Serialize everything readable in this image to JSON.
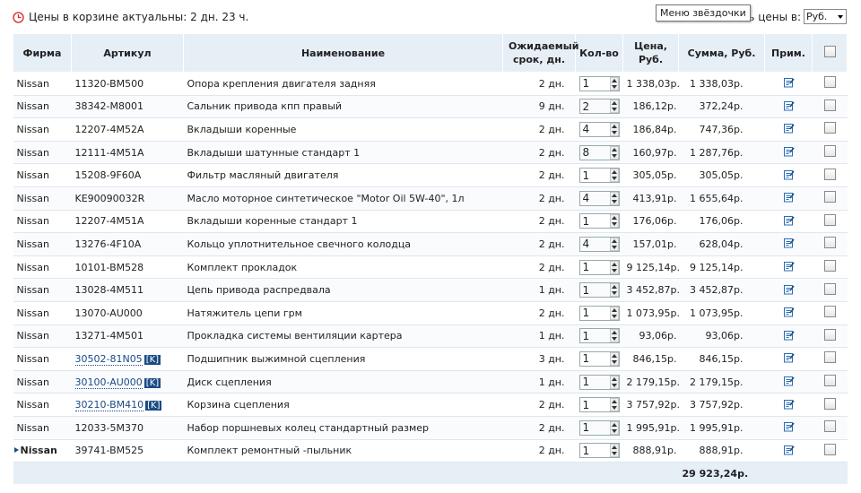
{
  "header": {
    "notice": "Цены в корзине актуальны: 2 дн. 23 ч.",
    "currency_label": "Показать цены в:",
    "currency": "Руб.",
    "tooltip": "Меню звёздочки"
  },
  "table": {
    "columns": [
      "Фирма",
      "Артикул",
      "Наименование",
      "Ожидаемый срок, дн.",
      "Кол-во",
      "Цена, Руб.",
      "Сумма, Руб.",
      "Прим."
    ],
    "rows": [
      {
        "firm": "Nissan",
        "article": "11320-BM500",
        "name": "Опора крепления двигателя задняя",
        "term": "2 дн.",
        "qty": "1",
        "price": "1 338,03р.",
        "sum": "1 338,03р."
      },
      {
        "firm": "Nissan",
        "article": "38342-M8001",
        "name": "Сальник привода кпп правый",
        "term": "9 дн.",
        "qty": "2",
        "price": "186,12р.",
        "sum": "372,24р."
      },
      {
        "firm": "Nissan",
        "article": "12207-4M52A",
        "name": "Вкладыши коренные",
        "term": "2 дн.",
        "qty": "4",
        "price": "186,84р.",
        "sum": "747,36р."
      },
      {
        "firm": "Nissan",
        "article": "12111-4M51A",
        "name": "Вкладыши шатунные стандарт 1",
        "term": "2 дн.",
        "qty": "8",
        "price": "160,97р.",
        "sum": "1 287,76р."
      },
      {
        "firm": "Nissan",
        "article": "15208-9F60A",
        "name": "Фильтр масляный двигателя",
        "term": "2 дн.",
        "qty": "1",
        "price": "305,05р.",
        "sum": "305,05р."
      },
      {
        "firm": "Nissan",
        "article": "KE90090032R",
        "name": "Масло моторное синтетическое \"Motor Oil 5W-40\", 1л",
        "term": "2 дн.",
        "qty": "4",
        "price": "413,91р.",
        "sum": "1 655,64р."
      },
      {
        "firm": "Nissan",
        "article": "12207-4M51A",
        "name": "Вкладыши коренные стандарт 1",
        "term": "2 дн.",
        "qty": "1",
        "price": "176,06р.",
        "sum": "176,06р."
      },
      {
        "firm": "Nissan",
        "article": "13276-4F10A",
        "name": "Кольцо уплотнительное свечного колодца",
        "term": "2 дн.",
        "qty": "4",
        "price": "157,01р.",
        "sum": "628,04р."
      },
      {
        "firm": "Nissan",
        "article": "10101-BM528",
        "name": "Комплект прокладок",
        "term": "2 дн.",
        "qty": "1",
        "price": "9 125,14р.",
        "sum": "9 125,14р."
      },
      {
        "firm": "Nissan",
        "article": "13028-4M511",
        "name": "Цепь привода распредвала",
        "term": "1 дн.",
        "qty": "1",
        "price": "3 452,87р.",
        "sum": "3 452,87р."
      },
      {
        "firm": "Nissan",
        "article": "13070-AU000",
        "name": "Натяжитель цепи грм",
        "term": "2 дн.",
        "qty": "1",
        "price": "1 073,95р.",
        "sum": "1 073,95р."
      },
      {
        "firm": "Nissan",
        "article": "13271-4M501",
        "name": "Прокладка системы вентиляции картера",
        "term": "1 дн.",
        "qty": "1",
        "price": "93,06р.",
        "sum": "93,06р."
      },
      {
        "firm": "Nissan",
        "article": "30502-81N05",
        "badge": "[K]",
        "name": "Подшипник выжимной сцепления",
        "term": "3 дн.",
        "qty": "1",
        "price": "846,15р.",
        "sum": "846,15р."
      },
      {
        "firm": "Nissan",
        "article": "30100-AU000",
        "badge": "[K]",
        "name": "Диск сцепления",
        "term": "1 дн.",
        "qty": "1",
        "price": "2 179,15р.",
        "sum": "2 179,15р."
      },
      {
        "firm": "Nissan",
        "article": "30210-BM410",
        "badge": "[K]",
        "name": "Корзина сцепления",
        "term": "2 дн.",
        "qty": "1",
        "price": "3 757,92р.",
        "sum": "3 757,92р."
      },
      {
        "firm": "Nissan",
        "article": "12033-5M370",
        "name": "Набор поршневых колец стандартный размер",
        "term": "2 дн.",
        "qty": "1",
        "price": "1 995,91р.",
        "sum": "1 995,91р."
      },
      {
        "firm": "Nissan",
        "article": "39741-BM525",
        "name": "Комплект ремонтный -пыльник",
        "term": "2 дн.",
        "qty": "1",
        "price": "888,91р.",
        "sum": "888,91р.",
        "selected": true
      }
    ],
    "total": "29 923,24р."
  }
}
